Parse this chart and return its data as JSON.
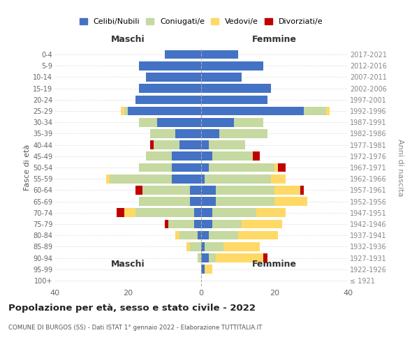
{
  "age_groups": [
    "100+",
    "95-99",
    "90-94",
    "85-89",
    "80-84",
    "75-79",
    "70-74",
    "65-69",
    "60-64",
    "55-59",
    "50-54",
    "45-49",
    "40-44",
    "35-39",
    "30-34",
    "25-29",
    "20-24",
    "15-19",
    "10-14",
    "5-9",
    "0-4"
  ],
  "birth_years": [
    "≤ 1921",
    "1922-1926",
    "1927-1931",
    "1932-1936",
    "1937-1941",
    "1942-1946",
    "1947-1951",
    "1952-1956",
    "1957-1961",
    "1962-1966",
    "1967-1971",
    "1972-1976",
    "1977-1981",
    "1982-1986",
    "1987-1991",
    "1992-1996",
    "1997-2001",
    "2002-2006",
    "2007-2011",
    "2012-2016",
    "2017-2021"
  ],
  "colors": {
    "celibi": "#4472c4",
    "coniugati": "#c5d9a0",
    "vedovi": "#ffd966",
    "divorziati": "#c00000"
  },
  "maschi": {
    "celibi": [
      0,
      0,
      0,
      0,
      1,
      2,
      2,
      3,
      3,
      8,
      8,
      8,
      6,
      7,
      12,
      20,
      18,
      17,
      15,
      17,
      10
    ],
    "coniugati": [
      0,
      0,
      1,
      3,
      5,
      7,
      16,
      14,
      13,
      17,
      9,
      7,
      7,
      7,
      5,
      1,
      0,
      0,
      0,
      0,
      0
    ],
    "vedovi": [
      0,
      0,
      0,
      1,
      1,
      0,
      3,
      0,
      0,
      1,
      0,
      0,
      0,
      0,
      0,
      1,
      0,
      0,
      0,
      0,
      0
    ],
    "divorziati": [
      0,
      0,
      0,
      0,
      0,
      1,
      2,
      0,
      2,
      0,
      0,
      0,
      1,
      0,
      0,
      0,
      0,
      0,
      0,
      0,
      0
    ]
  },
  "femmine": {
    "celibi": [
      0,
      1,
      2,
      1,
      2,
      3,
      3,
      4,
      4,
      1,
      2,
      3,
      2,
      5,
      9,
      28,
      18,
      19,
      11,
      17,
      10
    ],
    "coniugati": [
      0,
      0,
      2,
      5,
      8,
      8,
      12,
      16,
      16,
      18,
      18,
      11,
      10,
      13,
      8,
      6,
      0,
      0,
      0,
      0,
      0
    ],
    "vedovi": [
      0,
      2,
      13,
      10,
      11,
      11,
      8,
      9,
      7,
      4,
      1,
      0,
      0,
      0,
      0,
      1,
      0,
      0,
      0,
      0,
      0
    ],
    "divorziati": [
      0,
      0,
      1,
      0,
      0,
      0,
      0,
      0,
      1,
      0,
      2,
      2,
      0,
      0,
      0,
      0,
      0,
      0,
      0,
      0,
      0
    ]
  },
  "xlim": 40,
  "title": "Popolazione per età, sesso e stato civile - 2022",
  "subtitle": "COMUNE DI BURGOS (SS) - Dati ISTAT 1° gennaio 2022 - Elaborazione TUTTITALIA.IT",
  "ylabel_left": "Fasce di età",
  "ylabel_right": "Anni di nascita",
  "xlabel_maschi": "Maschi",
  "xlabel_femmine": "Femmine",
  "legend_labels": [
    "Celibi/Nubili",
    "Coniugati/e",
    "Vedovi/e",
    "Divorziati/e"
  ]
}
